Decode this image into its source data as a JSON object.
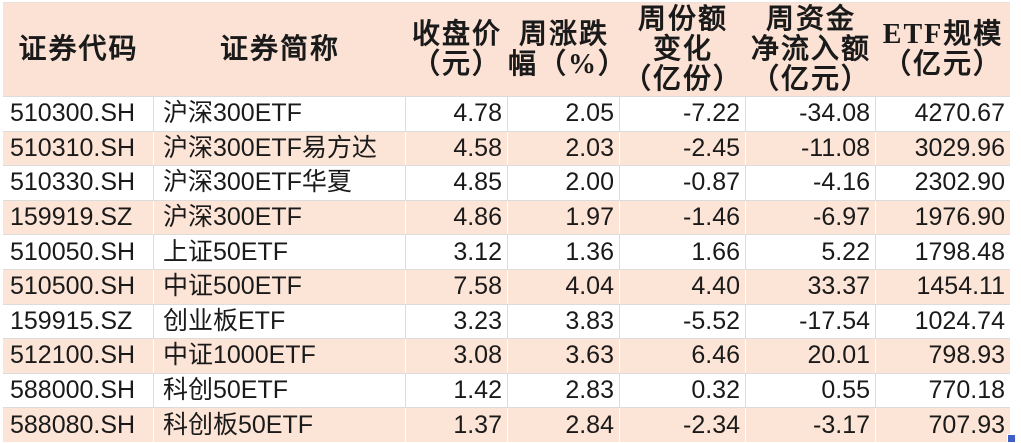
{
  "table": {
    "columns": [
      {
        "id": "code",
        "label": "证券代码",
        "align": "left"
      },
      {
        "id": "name",
        "label": "证券简称",
        "align": "left"
      },
      {
        "id": "close-price",
        "label": "收盘价\n（元）",
        "align": "right"
      },
      {
        "id": "weekly-change",
        "label": "周涨跌\n幅（%）",
        "align": "right"
      },
      {
        "id": "weekly-share-change",
        "label": "周份额\n变化\n（亿份）",
        "align": "right"
      },
      {
        "id": "weekly-net-inflow",
        "label": "周资金\n净流入额\n（亿元）",
        "align": "right"
      },
      {
        "id": "etf-scale",
        "label": "ETF规模\n（亿元）",
        "align": "right"
      }
    ],
    "rows": [
      [
        "510300.SH",
        "沪深300ETF",
        "4.78",
        "2.05",
        "-7.22",
        "-34.08",
        "4270.67"
      ],
      [
        "510310.SH",
        "沪深300ETF易方达",
        "4.58",
        "2.03",
        "-2.45",
        "-11.08",
        "3029.96"
      ],
      [
        "510330.SH",
        "沪深300ETF华夏",
        "4.85",
        "2.00",
        "-0.87",
        "-4.16",
        "2302.90"
      ],
      [
        "159919.SZ",
        "沪深300ETF",
        "4.86",
        "1.97",
        "-1.46",
        "-6.97",
        "1976.90"
      ],
      [
        "510050.SH",
        "上证50ETF",
        "3.12",
        "1.36",
        "1.66",
        "5.22",
        "1798.48"
      ],
      [
        "510500.SH",
        "中证500ETF",
        "7.58",
        "4.04",
        "4.40",
        "33.37",
        "1454.11"
      ],
      [
        "159915.SZ",
        "创业板ETF",
        "3.23",
        "3.83",
        "-5.52",
        "-17.54",
        "1024.74"
      ],
      [
        "512100.SH",
        "中证1000ETF",
        "3.08",
        "3.63",
        "6.46",
        "20.01",
        "798.93"
      ],
      [
        "588000.SH",
        "科创50ETF",
        "1.42",
        "2.83",
        "0.32",
        "0.55",
        "770.18"
      ],
      [
        "588080.SH",
        "科创板50ETF",
        "1.37",
        "2.84",
        "-2.34",
        "-3.17",
        "707.93"
      ]
    ]
  },
  "colors": {
    "header_bg": "#fbe2d5",
    "band_row_bg": "#fce4d6",
    "plain_row_bg": "#ffffff",
    "gridline": "#dcdcdc",
    "text": "#1a1a1a",
    "fill_handle": "#3f5fc8"
  }
}
